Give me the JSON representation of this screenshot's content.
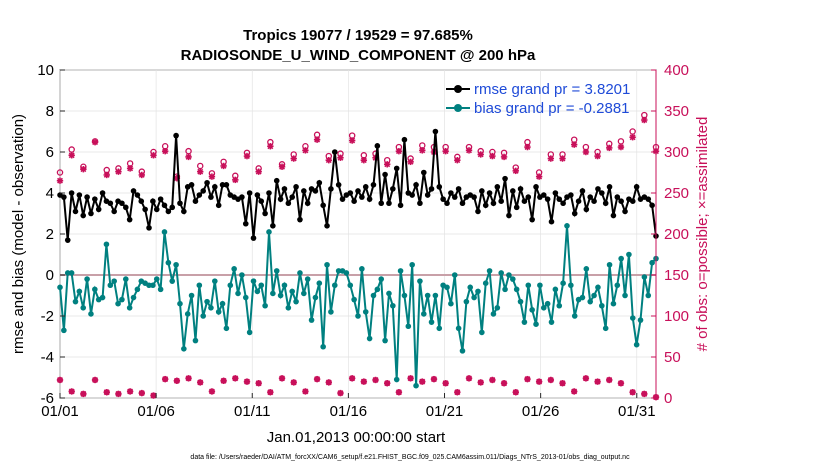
{
  "chart_data": {
    "type": "line",
    "title": "Tropics 19077 / 19529 = 97.685%",
    "subtitle": "RADIOSONDE_U_WIND_COMPONENT @ 200 hPa",
    "xlabel": "Jan.01,2013 00:00:00 start",
    "ylabel": "rmse and bias (model - observation)",
    "ylabel_right": "# of obs: o=possible; ×=assimilated",
    "ylim": [
      -6,
      10
    ],
    "ylim_right": [
      0,
      400
    ],
    "xlim": [
      0,
      31
    ],
    "yticks": [
      "-6",
      "-4",
      "-2",
      "0",
      "2",
      "4",
      "6",
      "8",
      "10"
    ],
    "yticks_right": [
      "0",
      "50",
      "100",
      "150",
      "200",
      "250",
      "300",
      "350",
      "400"
    ],
    "xticks": [
      {
        "label": "01/01",
        "x": 0
      },
      {
        "label": "01/06",
        "x": 5
      },
      {
        "label": "01/11",
        "x": 10
      },
      {
        "label": "01/16",
        "x": 15
      },
      {
        "label": "01/21",
        "x": 20
      },
      {
        "label": "01/26",
        "x": 25
      },
      {
        "label": "01/31",
        "x": 30
      }
    ],
    "legend": [
      {
        "name": "rmse grand pr = 3.8201",
        "color": "#000000"
      },
      {
        "name": "bias grand pr = -0.2881",
        "color": "#008080"
      }
    ],
    "series": [
      {
        "name": "rmse",
        "color": "#000000",
        "values": [
          3.9,
          3.8,
          1.7,
          4.0,
          3.1,
          3.9,
          2.9,
          3.8,
          3.0,
          3.7,
          3.2,
          4.0,
          3.6,
          3.5,
          3.1,
          3.6,
          3.5,
          3.3,
          2.7,
          4.1,
          3.9,
          3.6,
          3.2,
          2.3,
          3.6,
          3.2,
          3.7,
          3.4,
          3.1,
          3.3,
          6.8,
          3.5,
          3.1,
          4.3,
          4.4,
          3.6,
          3.9,
          4.1,
          4.5,
          3.8,
          4.3,
          3.4,
          4.4,
          4.4,
          3.9,
          3.8,
          3.7,
          3.8,
          2.5,
          4.0,
          1.8,
          3.9,
          3.6,
          3.0,
          4.0,
          2.4,
          4.6,
          3.7,
          4.2,
          3.5,
          3.8,
          4.3,
          2.7,
          4.1,
          3.5,
          4.2,
          4.1,
          4.5,
          3.4,
          2.4,
          4.2,
          6.0,
          4.4,
          3.7,
          3.9,
          4.0,
          3.6,
          4.1,
          3.8,
          4.3,
          3.7,
          4.4,
          6.3,
          3.5,
          4.9,
          3.5,
          4.2,
          5.2,
          3.4,
          6.6,
          4.0,
          3.9,
          4.4,
          3.5,
          5.0,
          3.9,
          4.2,
          7.0,
          4.3,
          3.7,
          3.5,
          4.0,
          3.8,
          4.2,
          3.5,
          3.8,
          3.9,
          3.8,
          3.1,
          4.1,
          3.4,
          4.0,
          3.5,
          4.3,
          3.6,
          4.7,
          2.9,
          4.1,
          3.3,
          4.2,
          3.6,
          3.8,
          2.7,
          4.3,
          3.8,
          3.9,
          3.7,
          2.6,
          4.0,
          3.7,
          3.5,
          3.8,
          3.9,
          3.0,
          3.6,
          4.1,
          3.2,
          3.8,
          3.6,
          4.2,
          4.0,
          3.5,
          4.3,
          2.9,
          3.8,
          3.6,
          3.1,
          3.7,
          3.6,
          4.3,
          3.7,
          3.8,
          3.7,
          3.4,
          1.9
        ]
      },
      {
        "name": "bias",
        "color": "#008080",
        "values": [
          -0.6,
          -2.7,
          0.1,
          0.1,
          -1.3,
          -0.8,
          -1.6,
          -0.2,
          -1.9,
          -0.7,
          -1.2,
          -1.1,
          1.5,
          -0.5,
          -0.3,
          -1.4,
          -1.2,
          -0.2,
          -1.6,
          -1.1,
          -0.7,
          -0.3,
          -0.4,
          -0.5,
          -0.5,
          -0.2,
          -0.7,
          2.1,
          0.6,
          -0.3,
          0.5,
          -1.4,
          -3.6,
          -1.9,
          -1.0,
          -3.2,
          -0.5,
          -2.0,
          -1.3,
          -1.6,
          -0.3,
          -1.8,
          -1.4,
          -2.6,
          -0.5,
          0.3,
          -0.9,
          0.0,
          -1.1,
          -2.8,
          -0.3,
          -0.8,
          -0.5,
          -1.5,
          2.1,
          -0.9,
          0.2,
          -1.0,
          -0.5,
          -1.6,
          -0.8,
          -1.3,
          0.1,
          -0.9,
          -0.2,
          -2.2,
          -1.1,
          -0.4,
          -3.5,
          0.5,
          -1.8,
          -0.5,
          0.2,
          0.2,
          0.1,
          -0.5,
          -1.2,
          -2.0,
          0.3,
          -1.8,
          -3.1,
          -1.0,
          -0.7,
          -0.2,
          -3.2,
          -0.9,
          -1.5,
          -5.1,
          0.2,
          -1.0,
          -2.5,
          0.5,
          -5.4,
          -0.3,
          -1.9,
          -1.0,
          -2.3,
          -1.0,
          -2.6,
          -0.5,
          -0.6,
          -1.4,
          0.0,
          -2.6,
          -3.7,
          -1.3,
          -0.6,
          -1.1,
          -0.8,
          -2.8,
          -0.4,
          0.2,
          -1.9,
          -1.6,
          0.1,
          -0.7,
          0.0,
          -0.2,
          -0.7,
          -1.3,
          -2.3,
          -0.5,
          -1.7,
          -2.4,
          -0.5,
          -1.6,
          -1.4,
          -2.3,
          -0.7,
          -1.5,
          -0.4,
          2.4,
          -0.5,
          -2.0,
          -1.2,
          -1.1,
          0.3,
          -1.3,
          -1.0,
          -0.6,
          -1.5,
          -2.6,
          0.5,
          -1.4,
          -0.5,
          0.8,
          -1.0,
          1.0,
          -2.1,
          -3.4,
          -2.2,
          -0.1,
          -1.0,
          0.6,
          0.8
        ]
      }
    ],
    "obs_possible_values": [
      275,
      280,
      298,
      303,
      307,
      290,
      282,
      278,
      287,
      313,
      297,
      288,
      278,
      294,
      285,
      280,
      265,
      309,
      286,
      293,
      291,
      276,
      289,
      285,
      300,
      270,
      290,
      307,
      313,
      290,
      270,
      284,
      296,
      301,
      308,
      296,
      283,
      306,
      295,
      274,
      305,
      297,
      288,
      282,
      275,
      271,
      291,
      308,
      299,
      307,
      279,
      280,
      304,
      296,
      312,
      282,
      296,
      285,
      298,
      310,
      297,
      290,
      281,
      307,
      296,
      318,
      321,
      289,
      305,
      295,
      318,
      310,
      298,
      289,
      300,
      320,
      307,
      310,
      296,
      282,
      289,
      298,
      318,
      310,
      290,
      279,
      300,
      306,
      318,
      310,
      292,
      293,
      315,
      308,
      299,
      287,
      306,
      298,
      281,
      306,
      286,
      292,
      294,
      299,
      290,
      306,
      293,
      284,
      301,
      296,
      317,
      300,
      283,
      306,
      299,
      290,
      301,
      281,
      297,
      303,
      312,
      310,
      291,
      275,
      303,
      278,
      297,
      305,
      316,
      297,
      289,
      306,
      315,
      303,
      338,
      306,
      333,
      315,
      300,
      278,
      294,
      310,
      298,
      282,
      313,
      315,
      305,
      325,
      299,
      307,
      345,
      320,
      298,
      306
    ],
    "obs_assimilated_values": [
      265,
      255,
      265,
      296,
      296,
      282,
      279,
      273,
      279,
      312,
      293,
      284,
      272,
      290,
      279,
      276,
      260,
      305,
      280,
      289,
      288,
      272,
      285,
      281,
      296,
      226,
      285,
      301,
      308,
      285,
      268,
      279,
      293,
      294,
      300,
      289,
      276,
      300,
      291,
      270,
      301,
      293,
      283,
      278,
      270,
      266,
      286,
      303,
      295,
      301,
      274,
      276,
      299,
      291,
      307,
      279,
      292,
      282,
      293,
      306,
      292,
      286,
      277,
      302,
      291,
      313,
      315,
      285,
      300,
      290,
      312,
      305,
      293,
      285,
      295,
      314,
      301,
      304,
      290,
      278,
      284,
      293,
      312,
      305,
      285,
      274,
      295,
      301,
      312,
      305,
      288,
      289,
      310,
      302,
      294,
      284,
      300,
      292,
      277,
      301,
      281,
      288,
      290,
      294,
      285,
      302,
      289,
      279,
      297,
      291,
      311,
      295,
      279,
      301,
      294,
      286,
      296,
      277,
      293,
      298,
      306,
      305,
      286,
      270,
      298,
      275,
      292,
      300,
      310,
      292,
      285,
      300,
      309,
      298,
      330,
      300,
      325,
      309,
      295,
      275,
      290,
      305,
      294,
      279,
      306,
      309,
      300,
      318,
      294,
      301,
      339,
      312,
      293,
      301
    ],
    "obs_bottom_values": [
      22,
      12,
      20,
      8,
      25,
      16,
      5,
      17,
      9,
      22,
      12,
      18,
      7,
      23,
      12,
      5,
      20,
      14,
      8,
      24,
      15,
      6,
      20,
      10,
      3,
      17,
      11,
      23,
      13,
      6,
      21,
      15,
      8,
      24,
      14,
      4,
      19,
      12,
      22,
      8,
      16,
      5,
      21,
      13,
      7,
      24,
      15,
      9,
      20,
      11,
      4,
      18,
      13,
      22,
      7,
      17,
      10,
      24,
      14,
      6,
      19,
      12,
      21,
      8,
      16,
      5,
      23,
      13,
      9,
      19,
      12,
      22,
      6,
      17,
      10,
      24,
      14,
      5,
      20,
      11,
      8,
      22,
      15,
      6,
      18,
      12,
      21,
      7,
      16,
      10,
      24,
      14,
      5,
      20,
      11,
      9,
      23,
      15,
      6,
      18,
      12,
      22,
      7,
      17,
      10,
      24,
      13,
      5,
      19,
      11,
      8,
      22,
      14,
      6,
      18,
      12,
      21,
      7,
      16,
      10,
      23,
      13,
      5,
      20,
      11,
      9,
      22,
      15,
      6,
      18,
      12,
      21,
      8,
      17,
      10,
      24,
      14,
      5,
      20,
      11,
      8,
      22,
      15,
      6,
      18,
      12,
      21,
      7,
      3,
      10,
      5,
      2,
      4,
      1
    ]
  },
  "footer": {
    "data_file": "data file: /Users/raeder/DAI/ATM_forcXX/CAM6_setup/f.e21.FHIST_BGC.f09_025.CAM6assim.011/Diags_NTrS_2013-01/obs_diag_output.nc"
  },
  "colors": {
    "rmse": "#000000",
    "bias": "#008080",
    "obs": "#c8105a",
    "zero_line": "#c8a0a8",
    "legend_text": "#1f4bd8"
  }
}
